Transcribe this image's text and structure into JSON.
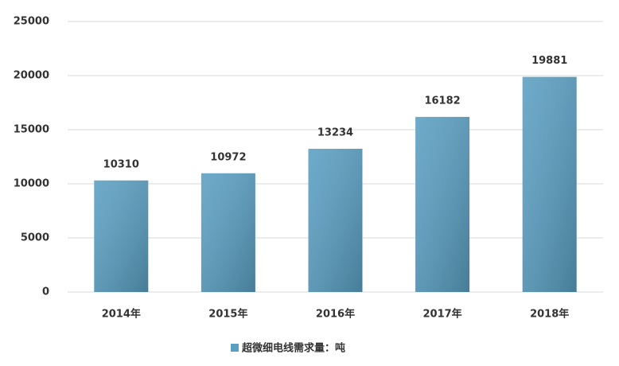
{
  "chart_data": {
    "type": "bar",
    "categories": [
      "2014年",
      "2015年",
      "2016年",
      "2017年",
      "2018年"
    ],
    "series": [
      {
        "name": "超微细电线需求量：吨",
        "color": "#5a9fc2",
        "values": [
          10310,
          10972,
          13234,
          16182,
          19881
        ]
      }
    ],
    "ylim": [
      0,
      25000
    ],
    "yticks": [
      0,
      5000,
      10000,
      15000,
      20000,
      25000
    ],
    "grid": true,
    "legend": "bottom"
  }
}
